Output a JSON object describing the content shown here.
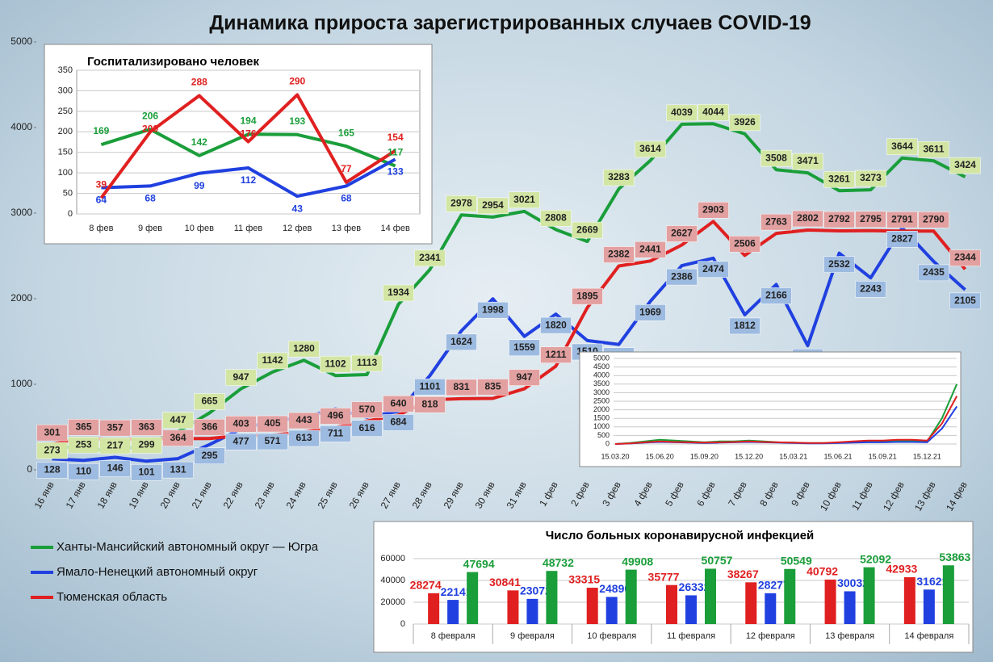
{
  "chart_data": [
    {
      "type": "line",
      "title": "Динамика прироста зарегистрированных случаев COVID-19",
      "categories": [
        "16 янв",
        "17 янв",
        "18 янв",
        "19 янв",
        "20 янв",
        "21 янв",
        "22 янв",
        "23 янв",
        "24 янв",
        "25 янв",
        "26 янв",
        "27 янв",
        "28 янв",
        "29 янв",
        "30 янв",
        "31 янв",
        "1 фев",
        "2 фев",
        "3 фев",
        "4 фев",
        "5 фев",
        "6 фев",
        "7 фев",
        "8 фев",
        "9 фев",
        "10 фев",
        "11 фев",
        "12 фев",
        "13 фев",
        "14 фев"
      ],
      "series": [
        {
          "name": "Ханты-Мансийский автономный округ — Югра",
          "color": "#1a9e3a",
          "values": [
            273,
            253,
            217,
            299,
            447,
            665,
            947,
            1142,
            1280,
            1102,
            1113,
            1934,
            2341,
            2978,
            2954,
            3021,
            2808,
            2669,
            3283,
            3614,
            4039,
            4044,
            3926,
            3508,
            3471,
            3261,
            3273,
            3644,
            3611,
            3424
          ]
        },
        {
          "name": "Ямало-Ненецкий автономный округ",
          "color": "#2040e0",
          "values": [
            128,
            110,
            146,
            101,
            131,
            295,
            477,
            571,
            613,
            711,
            616,
            684,
            1101,
            1624,
            1998,
            1559,
            1820,
            1510,
            1465,
            1969,
            2386,
            2474,
            1812,
            2166,
            1451,
            2532,
            2243,
            2827,
            2435,
            2105
          ]
        },
        {
          "name": "Тюменская область",
          "color": "#e02020",
          "values": [
            301,
            365,
            357,
            363,
            364,
            366,
            403,
            405,
            443,
            496,
            570,
            640,
            818,
            831,
            835,
            947,
            1211,
            1895,
            2382,
            2441,
            2627,
            2903,
            2506,
            2763,
            2802,
            2792,
            2795,
            2791,
            2790,
            2344
          ]
        }
      ],
      "ylim": [
        0,
        5000
      ],
      "yticks": [
        0,
        1000,
        2000,
        3000,
        4000,
        5000
      ]
    },
    {
      "type": "line",
      "title": "Госпитализировано  человек",
      "categories": [
        "8 фев",
        "9 фев",
        "10 фев",
        "11 фев",
        "12 фев",
        "13 фев",
        "14 фев"
      ],
      "series": [
        {
          "color": "#1a9e3a",
          "values": [
            169,
            206,
            142,
            194,
            193,
            165,
            117
          ]
        },
        {
          "color": "#2040e0",
          "values": [
            64,
            68,
            99,
            112,
            43,
            68,
            133
          ]
        },
        {
          "color": "#e02020",
          "values": [
            39,
            200,
            288,
            176,
            290,
            77,
            154
          ]
        }
      ],
      "ylim": [
        0,
        350
      ],
      "yticks": [
        0,
        50,
        100,
        150,
        200,
        250,
        300,
        350
      ],
      "grid": true
    },
    {
      "type": "line",
      "categories": [
        "15.03.20",
        null,
        null,
        "15.06.20",
        null,
        null,
        "15.09.20",
        null,
        null,
        "15.12.20",
        null,
        null,
        "15.03.21",
        null,
        null,
        "15.06.21",
        null,
        null,
        "15.09.21",
        null,
        null,
        "15.12.21",
        null,
        null
      ],
      "series": [
        {
          "color": "#1a9e3a",
          "values": [
            0,
            60,
            150,
            250,
            200,
            150,
            100,
            150,
            150,
            200,
            150,
            100,
            80,
            50,
            50,
            80,
            100,
            150,
            150,
            200,
            200,
            150,
            1500,
            3500
          ]
        },
        {
          "color": "#2040e0",
          "values": [
            0,
            30,
            80,
            120,
            100,
            80,
            60,
            80,
            100,
            120,
            100,
            80,
            60,
            40,
            40,
            60,
            80,
            100,
            100,
            120,
            120,
            100,
            900,
            2200
          ]
        },
        {
          "color": "#e02020",
          "values": [
            0,
            40,
            100,
            150,
            120,
            100,
            80,
            100,
            120,
            150,
            120,
            100,
            80,
            60,
            60,
            100,
            150,
            200,
            200,
            250,
            250,
            200,
            1200,
            2800
          ]
        }
      ],
      "ylim": [
        0,
        5000
      ],
      "yticks": [
        0,
        500,
        1000,
        1500,
        2000,
        2500,
        3000,
        3500,
        4000,
        4500,
        5000
      ],
      "grid": true
    },
    {
      "type": "bar",
      "title": "Число больных  коронавирусной  инфекцией",
      "categories": [
        "8 февраля",
        "9 февраля",
        "10 февраля",
        "11 февраля",
        "12 февраля",
        "13 февраля",
        "14 февраля"
      ],
      "series": [
        {
          "color": "#e02020",
          "values": [
            28274,
            30841,
            33315,
            35777,
            38267,
            40792,
            42933
          ]
        },
        {
          "color": "#2040e0",
          "values": [
            22141,
            23072,
            24890,
            26332,
            28277,
            30032,
            31621
          ]
        },
        {
          "color": "#1a9e3a",
          "values": [
            47694,
            48732,
            49908,
            50757,
            50549,
            52092,
            53863
          ]
        }
      ],
      "ylim": [
        0,
        60000
      ],
      "yticks": [
        0,
        20000,
        40000,
        60000
      ],
      "grid": true
    }
  ]
}
